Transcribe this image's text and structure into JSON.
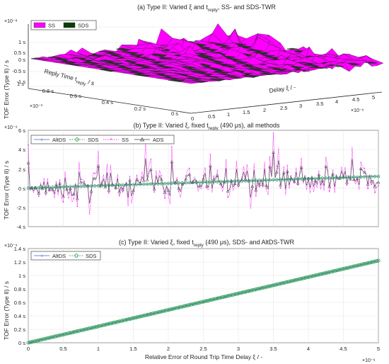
{
  "figure": {
    "panel_a_title": "(a) Type II: Varied ξ and t",
    "panel_a_title_sub": "reply",
    "panel_a_title_rest": ", SS- and SDS-TWR",
    "panel_b_title": "(b) Type II: Varied ξ, fixed t",
    "panel_b_title_sub": "reply",
    "panel_b_title_rest": " (490 μs), all methods",
    "panel_c_title": "(c) Type II: Varied ξ,  fixed t",
    "panel_c_title_sub": "reply",
    "panel_c_title_rest": " (490 μs), SDS- and AltDS-TWR"
  },
  "colors": {
    "ss": "#ff00ff",
    "sds": "#0a3d0a",
    "sds_line": "#1a9641",
    "altds": "#4a5fd0",
    "ads": "#404040",
    "grid": "#e6e6e6",
    "axis": "#262626"
  },
  "chart_data": [
    {
      "type": "surface",
      "panel": "a",
      "zlabel": "TOF Error (Type II) / s",
      "xlabel": "Reply Time t",
      "xlabel_sub": "reply",
      "xlabel_rest": " / s",
      "ylabel": "Delay ξ / -",
      "z_exponent": "×10⁻⁸",
      "x_exponent": "×10⁻³",
      "y_exponent": "×10⁻⁶",
      "z_ticks": [
        "1 s",
        "0.5 s",
        "0 s",
        "-0.5 s",
        "-1 s"
      ],
      "x_ticks": [
        "1 s",
        "0.8 s",
        "0.6 s",
        "0.4 s",
        "0.2 s",
        "0 s"
      ],
      "y_ticks": [
        "0",
        "0.5",
        "1",
        "1.5",
        "2",
        "2.5",
        "3",
        "3.5",
        "4",
        "4.5",
        "5"
      ],
      "series": [
        {
          "name": "SS",
          "color": "#ff00ff"
        },
        {
          "name": "SDS",
          "color": "#0a3d0a"
        }
      ],
      "zlim": [
        -1e-08,
        1e-08
      ]
    },
    {
      "type": "line",
      "panel": "b",
      "ylabel": "TOF Error (Type II) / s",
      "y_exponent": "×10⁻⁹",
      "ylim": [
        -4,
        6
      ],
      "y_ticks": [
        "6 s",
        "4 s",
        "2 s",
        "0 s",
        "-2 s",
        "-4 s"
      ],
      "xlim": [
        0,
        5
      ],
      "series": [
        {
          "name": "AltDS",
          "start": 0,
          "end": 1.22
        },
        {
          "name": "SDS",
          "start": 0,
          "end": 1.22
        },
        {
          "name": "SS",
          "mean_start": 0,
          "mean_end": 1.22,
          "noise_amplitude": 1.5
        },
        {
          "name": "ADS",
          "mean_start": 0,
          "mean_end": 1.22,
          "noise_amplitude": 0.9
        }
      ]
    },
    {
      "type": "line",
      "panel": "c",
      "ylabel": "TOF Error (Type II) / s",
      "xlabel": "Relative Error of Round Trip Time Delay ξ / -",
      "y_exponent": "×10⁻⁹",
      "x_exponent": "×10⁻⁶",
      "ylim": [
        0,
        1.4
      ],
      "xlim": [
        0,
        5
      ],
      "y_ticks": [
        "1.4 s",
        "1.2 s",
        "1 s",
        "0.8 s",
        "0.6 s",
        "0.4 s",
        "0.2 s",
        "0 s"
      ],
      "x_ticks": [
        "0",
        "0.5",
        "1",
        "1.5",
        "2",
        "2.5",
        "3",
        "3.5",
        "4",
        "4.5",
        "5"
      ],
      "series": [
        {
          "name": "AltDS",
          "x": [
            0,
            5
          ],
          "y": [
            0,
            1.22
          ]
        },
        {
          "name": "SDS",
          "x": [
            0,
            5
          ],
          "y": [
            0,
            1.22
          ]
        }
      ]
    }
  ]
}
